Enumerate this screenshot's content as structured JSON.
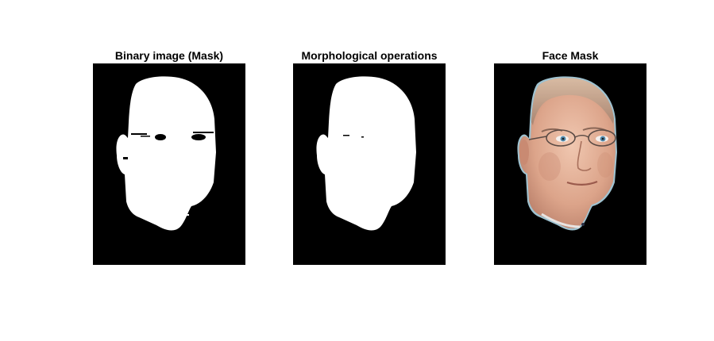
{
  "figure": {
    "panels": [
      {
        "title": "Binary image (Mask)"
      },
      {
        "title": "Morphological operations"
      },
      {
        "title": "Face Mask"
      }
    ]
  },
  "colors": {
    "background": "#ffffff",
    "image_background": "#000000",
    "mask_foreground": "#ffffff",
    "skin": "#e3b29a",
    "hair": "#c7a58c",
    "iris": "#4f86a8",
    "outline": "#9fc3d1"
  }
}
